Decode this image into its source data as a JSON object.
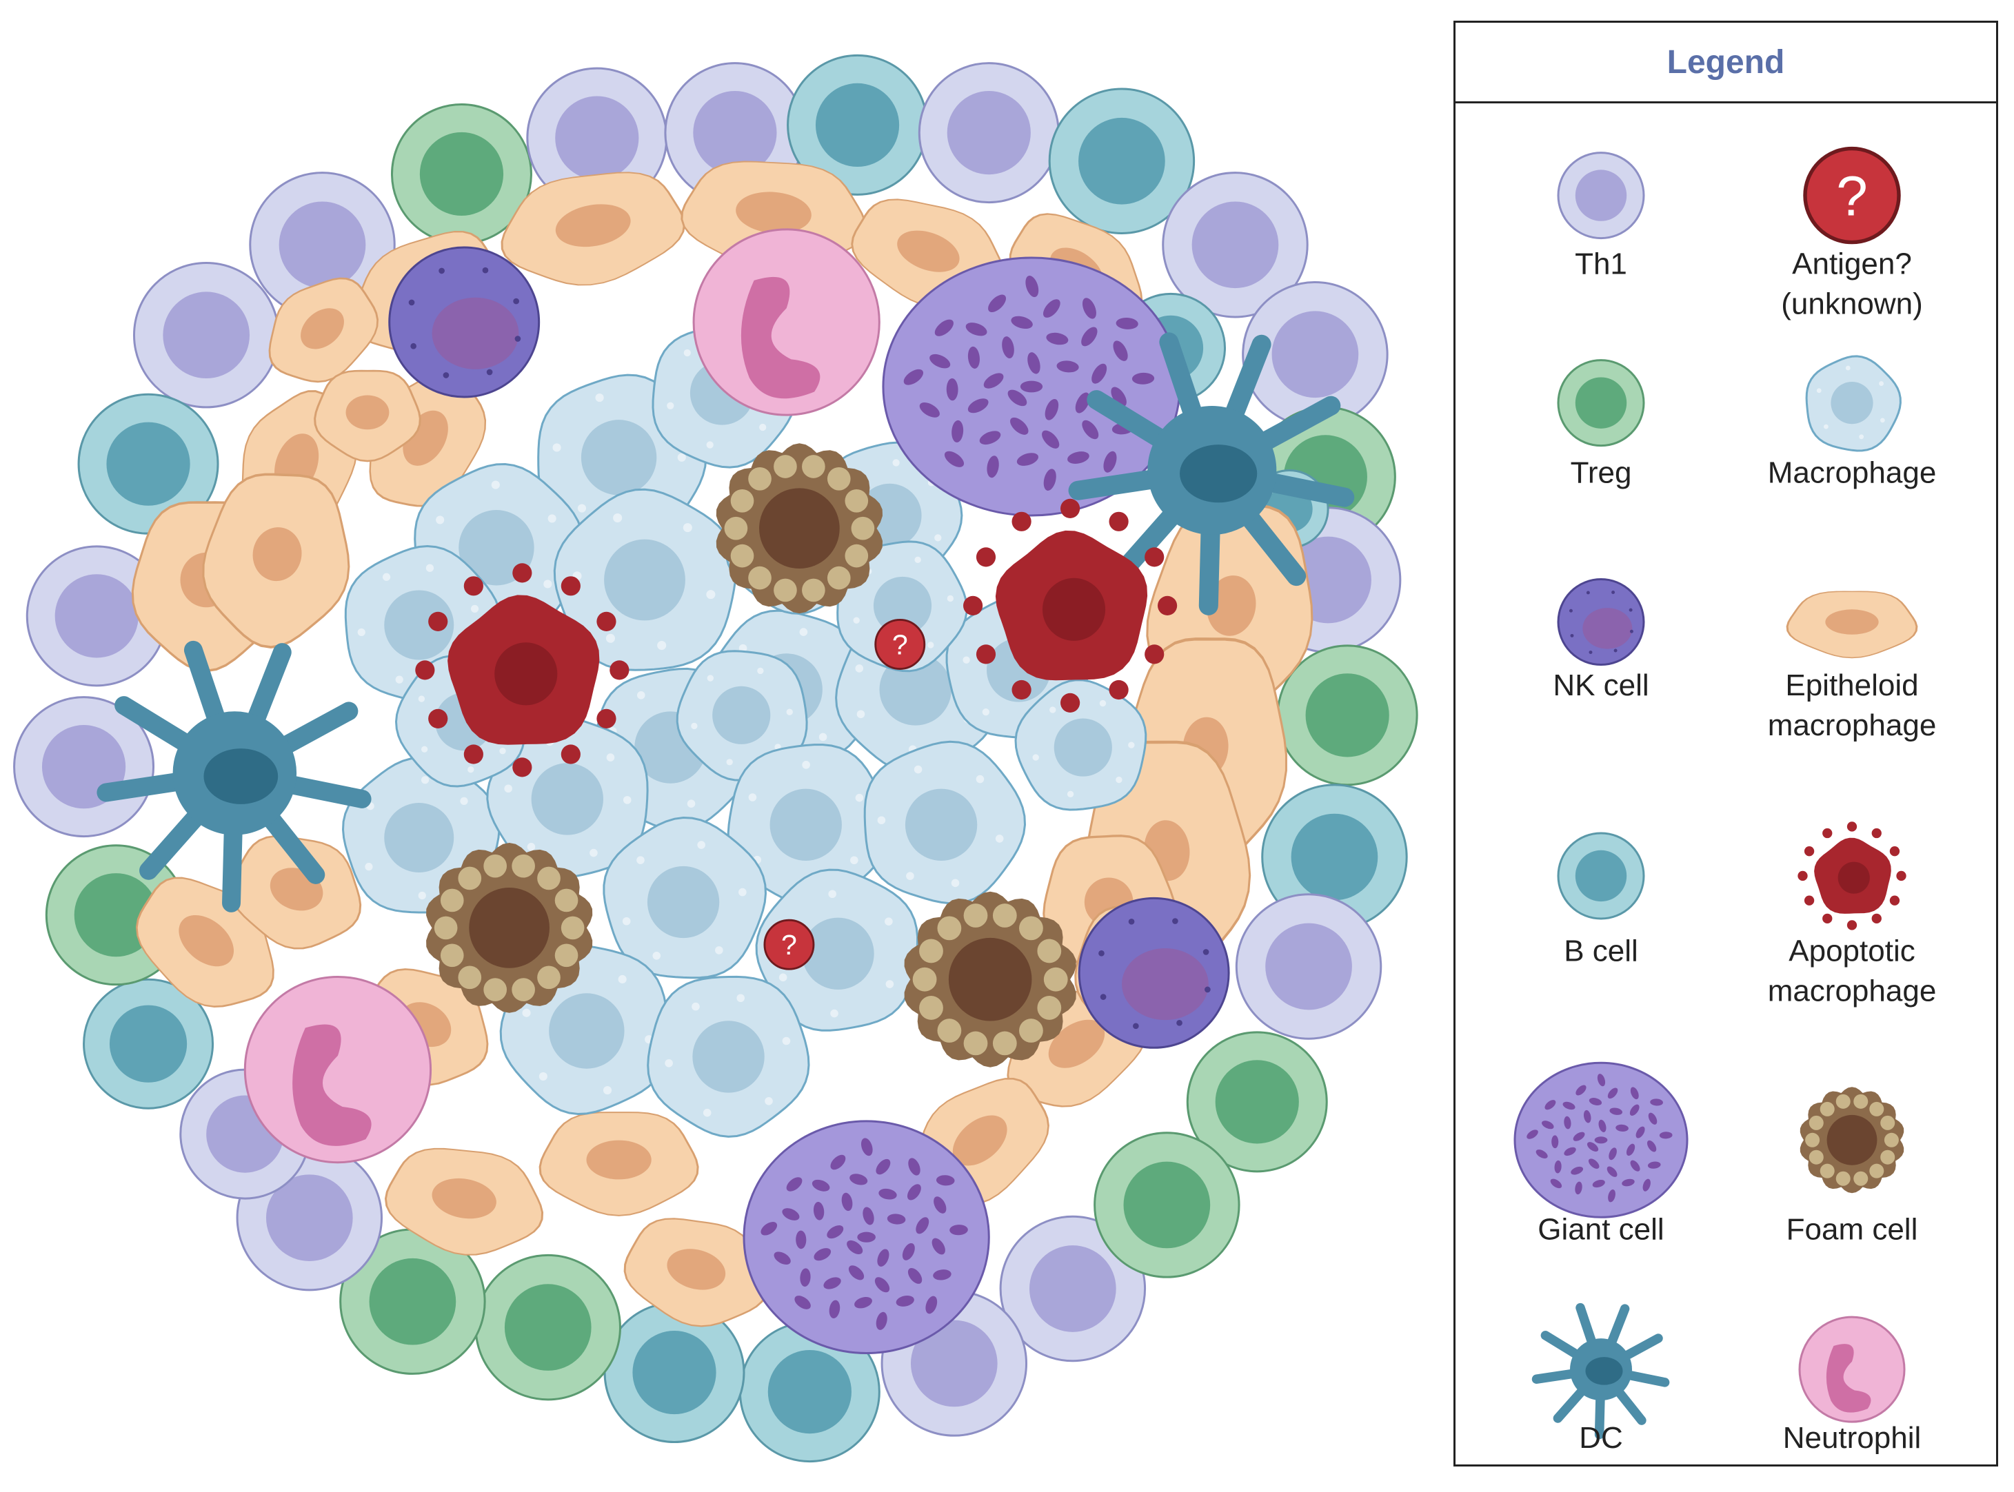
{
  "legend": {
    "title": "Legend",
    "items": [
      {
        "key": "th1",
        "lines": [
          "Th1"
        ]
      },
      {
        "key": "antigen",
        "lines": [
          "Antigen?",
          "(unknown)"
        ],
        "symbol": "?"
      },
      {
        "key": "treg",
        "lines": [
          "Treg"
        ]
      },
      {
        "key": "macrophage",
        "lines": [
          "Macrophage"
        ]
      },
      {
        "key": "nk",
        "lines": [
          "NK cell"
        ]
      },
      {
        "key": "epitheloid",
        "lines": [
          "Epitheloid",
          "macrophage"
        ]
      },
      {
        "key": "bcell",
        "lines": [
          "B cell"
        ]
      },
      {
        "key": "apoptotic",
        "lines": [
          "Apoptotic",
          "macrophage"
        ]
      },
      {
        "key": "giant",
        "lines": [
          "Giant cell"
        ]
      },
      {
        "key": "foam",
        "lines": [
          "Foam cell"
        ]
      },
      {
        "key": "dc",
        "lines": [
          "DC"
        ]
      },
      {
        "key": "neutrophil",
        "lines": [
          "Neutrophil"
        ]
      }
    ]
  },
  "granuloma": {
    "antigen_symbol": "?"
  },
  "colors": {
    "th1_outer": "#d3d6ee",
    "th1_inner": "#a9a6d9",
    "th1_stroke": "#8d8fc4",
    "treg_outer": "#a9d6b4",
    "treg_inner": "#5eaa7c",
    "treg_stroke": "#5a9a70",
    "bcell_outer": "#a6d4dc",
    "bcell_inner": "#5fa3b5",
    "bcell_stroke": "#5a98a8",
    "nk_outer": "#7a70c4",
    "nk_inner": "#8b63ad",
    "nk_stroke": "#4d4590",
    "macro_fill": "#cfe3ef",
    "macro_nucleus": "#a9c9dc",
    "macro_stroke": "#6fa9c6",
    "epi_fill": "#f7d2ab",
    "epi_nucleus": "#e2a77c",
    "epi_stroke": "#d8a070",
    "apop_fill": "#a8262e",
    "apop_core": "#8b1d24",
    "foam_fill": "#8c6b4b",
    "foam_vesicle": "#c9b58a",
    "foam_nucleus": "#6b4530",
    "giant_fill": "#a497db",
    "giant_nucleus": "#7a4ea5",
    "giant_stroke": "#6a5aaa",
    "dc_fill": "#4d8da8",
    "dc_nucleus": "#2f6c86",
    "neut_fill": "#f0b4d6",
    "neut_nucleus": "#cf6fa5",
    "neut_stroke": "#c37aa6",
    "antigen_fill": "#c7343c",
    "antigen_stroke": "#6e1a1e"
  }
}
